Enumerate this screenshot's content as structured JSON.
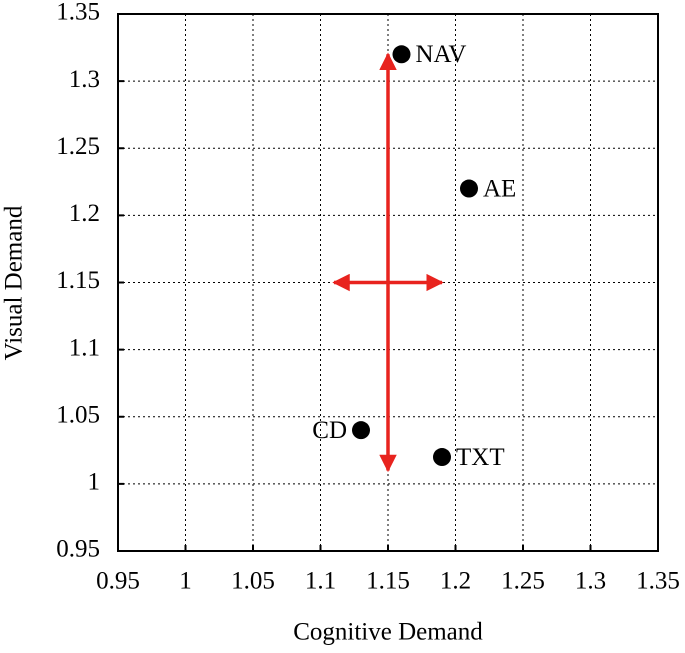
{
  "chart_data": {
    "type": "scatter",
    "x_label": "Cognitive Demand",
    "y_label": "Visual Demand",
    "x": [
      1.16,
      1.21,
      1.13,
      1.19
    ],
    "values": [
      1.32,
      1.22,
      1.04,
      1.02
    ],
    "labels": [
      "NAV",
      "AE",
      "CD",
      "TXT"
    ],
    "color": "#000000",
    "xlim": [
      0.95,
      1.35
    ],
    "xticks": [
      0.95,
      1,
      1.05,
      1.1,
      1.15,
      1.2,
      1.25,
      1.3,
      1.35
    ],
    "ylim": [
      0.95,
      1.35
    ],
    "yticks": [
      0.95,
      1,
      1.05,
      1.1,
      1.15,
      1.2,
      1.25,
      1.3,
      1.35
    ],
    "grid": true,
    "arrows": [
      {
        "x": [
          1.15,
          1.15
        ],
        "y": [
          1.01,
          1.32
        ],
        "color": "#e8231e"
      },
      {
        "x": [
          1.11,
          1.19
        ],
        "y": [
          1.15,
          1.15
        ],
        "color": "#e8231e"
      }
    ]
  }
}
